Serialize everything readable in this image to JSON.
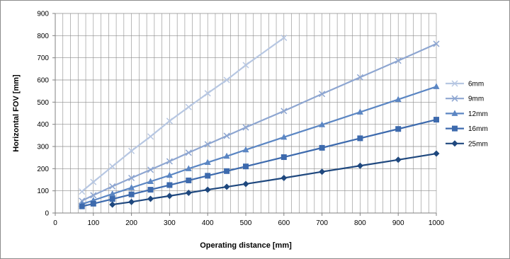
{
  "chart_data": {
    "type": "line",
    "title": "",
    "xlabel": "Operating distance [mm]",
    "ylabel": "Horizontal FOV [mm]",
    "xlim": [
      0,
      1000
    ],
    "ylim": [
      0,
      900
    ],
    "x_ticks": [
      0,
      100,
      200,
      300,
      400,
      500,
      600,
      700,
      800,
      900,
      1000
    ],
    "y_ticks": [
      0,
      100,
      200,
      300,
      400,
      500,
      600,
      700,
      800,
      900
    ],
    "x_tick_labels": [
      "0",
      "100",
      "200",
      "300",
      "400",
      "500",
      "600",
      "700",
      "800",
      "900",
      "1000"
    ],
    "y_tick_labels": [
      "0",
      "100",
      "200",
      "300",
      "400",
      "500",
      "600",
      "700",
      "800",
      "900"
    ],
    "grid": true,
    "legend_position": "right",
    "series": [
      {
        "name": "6mm",
        "color": "#b7c7e2",
        "marker": "x",
        "x": [
          70,
          100,
          150,
          200,
          250,
          300,
          350,
          400,
          450,
          500,
          600
        ],
        "y": [
          97,
          140,
          210,
          280,
          345,
          415,
          478,
          540,
          600,
          667,
          790
        ]
      },
      {
        "name": "9mm",
        "color": "#8ea6d1",
        "marker": "x",
        "x": [
          70,
          100,
          150,
          200,
          250,
          300,
          350,
          400,
          450,
          500,
          600,
          700,
          800,
          900,
          1000
        ],
        "y": [
          55,
          80,
          120,
          158,
          195,
          233,
          272,
          310,
          348,
          386,
          460,
          537,
          612,
          687,
          763
        ]
      },
      {
        "name": "12mm",
        "color": "#5b86c3",
        "marker": "triangle",
        "x": [
          70,
          100,
          150,
          200,
          250,
          300,
          350,
          400,
          450,
          500,
          600,
          700,
          800,
          900,
          1000
        ],
        "y": [
          40,
          57,
          86,
          114,
          142,
          170,
          200,
          228,
          256,
          285,
          342,
          398,
          455,
          512,
          570
        ]
      },
      {
        "name": "16mm",
        "color": "#3d6aad",
        "marker": "square",
        "x": [
          70,
          100,
          150,
          200,
          250,
          300,
          350,
          400,
          450,
          500,
          600,
          700,
          800,
          900,
          1000
        ],
        "y": [
          30,
          42,
          63,
          84,
          105,
          126,
          147,
          168,
          189,
          210,
          252,
          294,
          337,
          379,
          421
        ]
      },
      {
        "name": "25mm",
        "color": "#1f487e",
        "marker": "diamond",
        "x": [
          150,
          200,
          250,
          300,
          350,
          400,
          450,
          500,
          600,
          700,
          800,
          900,
          1000
        ],
        "y": [
          38,
          50,
          64,
          77,
          91,
          105,
          118,
          131,
          158,
          186,
          213,
          240,
          268
        ]
      }
    ]
  }
}
